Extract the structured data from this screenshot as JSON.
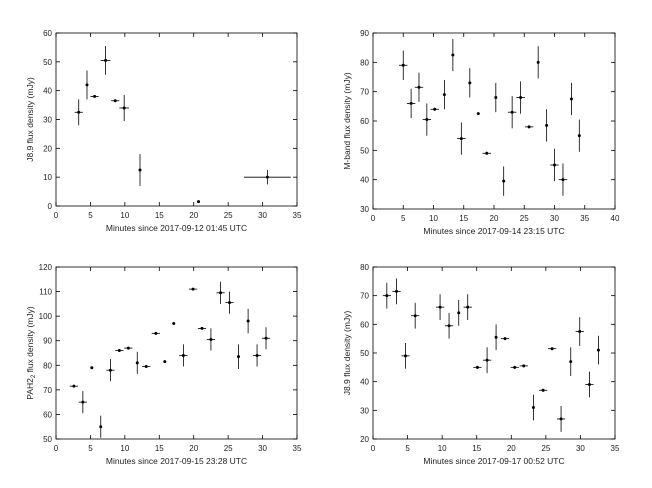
{
  "chart_data": [
    {
      "type": "scatter",
      "xlabel": "Minutes since 2017-09-12 01:45 UTC",
      "ylabel": "J8.9  flux density (mJy)",
      "xlim": [
        0,
        35
      ],
      "ylim": [
        0,
        60
      ],
      "xticks": [
        "0",
        "5",
        "10",
        "15",
        "20",
        "25",
        "30",
        "35"
      ],
      "yticks": [
        "0",
        "10",
        "20",
        "30",
        "40",
        "50",
        "60"
      ],
      "grid": false,
      "points": [
        {
          "x": 3.3,
          "y": 32.5,
          "xerr": 0.6,
          "yerr": 4.5
        },
        {
          "x": 4.5,
          "y": 42.0,
          "xerr": 0.0,
          "yerr": 5.0
        },
        {
          "x": 5.6,
          "y": 38.0,
          "xerr": 0.6,
          "yerr": 0.5
        },
        {
          "x": 7.2,
          "y": 50.5,
          "xerr": 0.7,
          "yerr": 5.0
        },
        {
          "x": 8.6,
          "y": 36.5,
          "xerr": 0.6,
          "yerr": 0.5
        },
        {
          "x": 9.9,
          "y": 34.0,
          "xerr": 0.7,
          "yerr": 4.5
        },
        {
          "x": 12.2,
          "y": 12.5,
          "xerr": 0.0,
          "yerr": 5.5
        },
        {
          "x": 20.7,
          "y": 1.5,
          "xerr": 0.0,
          "yerr": 0.0
        },
        {
          "x": 30.7,
          "y": 10.0,
          "xerr": 3.4,
          "yerr": 2.5
        }
      ]
    },
    {
      "type": "scatter",
      "xlabel": "Minutes since 2017-09-14 23:15 UTC",
      "ylabel": "M-band flux density (mJy)",
      "xlim": [
        0,
        40
      ],
      "ylim": [
        30,
        90
      ],
      "xticks": [
        "0",
        "5",
        "10",
        "15",
        "20",
        "25",
        "30",
        "35",
        "40"
      ],
      "yticks": [
        "30",
        "40",
        "50",
        "60",
        "70",
        "80",
        "90"
      ],
      "grid": false,
      "points": [
        {
          "x": 5.0,
          "y": 79.0,
          "xerr": 0.7,
          "yerr": 5.0
        },
        {
          "x": 6.3,
          "y": 66.0,
          "xerr": 0.7,
          "yerr": 5.0
        },
        {
          "x": 7.6,
          "y": 71.5,
          "xerr": 0.7,
          "yerr": 5.0
        },
        {
          "x": 8.9,
          "y": 60.5,
          "xerr": 0.7,
          "yerr": 5.5
        },
        {
          "x": 10.2,
          "y": 64.0,
          "xerr": 0.7,
          "yerr": 0.5
        },
        {
          "x": 11.8,
          "y": 69.0,
          "xerr": 0.0,
          "yerr": 5.0
        },
        {
          "x": 13.2,
          "y": 82.5,
          "xerr": 0.0,
          "yerr": 5.5
        },
        {
          "x": 14.6,
          "y": 54.0,
          "xerr": 0.7,
          "yerr": 5.5
        },
        {
          "x": 16.0,
          "y": 73.0,
          "xerr": 0.0,
          "yerr": 5.0
        },
        {
          "x": 17.4,
          "y": 62.5,
          "xerr": 0.0,
          "yerr": 0.0
        },
        {
          "x": 18.8,
          "y": 49.0,
          "xerr": 0.7,
          "yerr": 0.5
        },
        {
          "x": 20.3,
          "y": 68.0,
          "xerr": 0.0,
          "yerr": 5.0
        },
        {
          "x": 21.6,
          "y": 39.5,
          "xerr": 0.0,
          "yerr": 5.0
        },
        {
          "x": 23.0,
          "y": 63.0,
          "xerr": 0.7,
          "yerr": 5.5
        },
        {
          "x": 24.4,
          "y": 68.0,
          "xerr": 0.7,
          "yerr": 5.5
        },
        {
          "x": 25.8,
          "y": 58.0,
          "xerr": 0.7,
          "yerr": 0.5
        },
        {
          "x": 27.3,
          "y": 80.0,
          "xerr": 0.0,
          "yerr": 5.5
        },
        {
          "x": 28.7,
          "y": 58.5,
          "xerr": 0.0,
          "yerr": 5.5
        },
        {
          "x": 30.0,
          "y": 45.0,
          "xerr": 0.7,
          "yerr": 5.5
        },
        {
          "x": 31.4,
          "y": 40.0,
          "xerr": 0.7,
          "yerr": 5.5
        },
        {
          "x": 32.8,
          "y": 67.5,
          "xerr": 0.0,
          "yerr": 5.5
        },
        {
          "x": 34.1,
          "y": 55.0,
          "xerr": 0.0,
          "yerr": 5.5
        }
      ]
    },
    {
      "type": "scatter",
      "xlabel": "Minutes since 2017-09-15 23:28 UTC",
      "ylabel": "PAH2",
      "ylabel_sub": "2",
      "ylabel_after": " flux density (mJy)",
      "xlim": [
        0,
        35
      ],
      "ylim": [
        50,
        120
      ],
      "xticks": [
        "0",
        "5",
        "10",
        "15",
        "20",
        "25",
        "30",
        "35"
      ],
      "yticks": [
        "50",
        "60",
        "70",
        "80",
        "90",
        "100",
        "110",
        "120"
      ],
      "grid": false,
      "points": [
        {
          "x": 2.6,
          "y": 71.5,
          "xerr": 0.6,
          "yerr": 0.5
        },
        {
          "x": 3.9,
          "y": 65.0,
          "xerr": 0.6,
          "yerr": 4.5
        },
        {
          "x": 5.2,
          "y": 79.0,
          "xerr": 0.0,
          "yerr": 0.0
        },
        {
          "x": 6.5,
          "y": 55.0,
          "xerr": 0.0,
          "yerr": 4.5
        },
        {
          "x": 7.9,
          "y": 78.0,
          "xerr": 0.6,
          "yerr": 4.5
        },
        {
          "x": 9.2,
          "y": 86.0,
          "xerr": 0.6,
          "yerr": 0.5
        },
        {
          "x": 10.5,
          "y": 87.0,
          "xerr": 0.6,
          "yerr": 0.5
        },
        {
          "x": 11.8,
          "y": 81.0,
          "xerr": 0.0,
          "yerr": 4.5
        },
        {
          "x": 13.1,
          "y": 79.5,
          "xerr": 0.6,
          "yerr": 0.5
        },
        {
          "x": 14.5,
          "y": 93.0,
          "xerr": 0.6,
          "yerr": 0.5
        },
        {
          "x": 15.8,
          "y": 81.5,
          "xerr": 0.0,
          "yerr": 0.0
        },
        {
          "x": 17.1,
          "y": 97.0,
          "xerr": 0.0,
          "yerr": 0.0
        },
        {
          "x": 18.5,
          "y": 84.0,
          "xerr": 0.6,
          "yerr": 4.5
        },
        {
          "x": 19.9,
          "y": 111.0,
          "xerr": 0.6,
          "yerr": 0.5
        },
        {
          "x": 21.2,
          "y": 95.0,
          "xerr": 0.6,
          "yerr": 0.5
        },
        {
          "x": 22.5,
          "y": 90.5,
          "xerr": 0.6,
          "yerr": 4.5
        },
        {
          "x": 23.9,
          "y": 109.5,
          "xerr": 0.6,
          "yerr": 4.5
        },
        {
          "x": 25.2,
          "y": 105.5,
          "xerr": 0.6,
          "yerr": 4.5
        },
        {
          "x": 26.5,
          "y": 83.5,
          "xerr": 0.0,
          "yerr": 5.0
        },
        {
          "x": 27.9,
          "y": 98.0,
          "xerr": 0.0,
          "yerr": 5.0
        },
        {
          "x": 29.2,
          "y": 84.0,
          "xerr": 0.6,
          "yerr": 4.5
        },
        {
          "x": 30.5,
          "y": 91.0,
          "xerr": 0.6,
          "yerr": 4.5
        }
      ]
    },
    {
      "type": "scatter",
      "xlabel": "Minutes since 2017-09-17 00:52 UTC",
      "ylabel": "J8.9  flux density (mJy)",
      "xlim": [
        0,
        35
      ],
      "ylim": [
        20,
        80
      ],
      "xticks": [
        "0",
        "5",
        "10",
        "15",
        "20",
        "25",
        "30",
        "35"
      ],
      "yticks": [
        "20",
        "30",
        "40",
        "50",
        "60",
        "70",
        "80"
      ],
      "grid": false,
      "points": [
        {
          "x": 2.0,
          "y": 70.0,
          "xerr": 0.6,
          "yerr": 4.5
        },
        {
          "x": 3.4,
          "y": 71.5,
          "xerr": 0.6,
          "yerr": 4.5
        },
        {
          "x": 4.7,
          "y": 49.0,
          "xerr": 0.6,
          "yerr": 4.5
        },
        {
          "x": 6.1,
          "y": 63.0,
          "xerr": 0.6,
          "yerr": 4.5
        },
        {
          "x": 9.7,
          "y": 66.0,
          "xerr": 0.6,
          "yerr": 4.5
        },
        {
          "x": 11.0,
          "y": 59.5,
          "xerr": 0.6,
          "yerr": 4.5
        },
        {
          "x": 12.4,
          "y": 64.0,
          "xerr": 0.0,
          "yerr": 4.5
        },
        {
          "x": 13.7,
          "y": 66.0,
          "xerr": 0.6,
          "yerr": 4.5
        },
        {
          "x": 15.1,
          "y": 45.0,
          "xerr": 0.6,
          "yerr": 0.5
        },
        {
          "x": 16.5,
          "y": 47.5,
          "xerr": 0.6,
          "yerr": 4.5
        },
        {
          "x": 17.8,
          "y": 55.5,
          "xerr": 0.0,
          "yerr": 4.5
        },
        {
          "x": 19.1,
          "y": 55.0,
          "xerr": 0.6,
          "yerr": 0.5
        },
        {
          "x": 20.5,
          "y": 45.0,
          "xerr": 0.6,
          "yerr": 0.5
        },
        {
          "x": 21.8,
          "y": 45.5,
          "xerr": 0.6,
          "yerr": 0.5
        },
        {
          "x": 23.2,
          "y": 31.0,
          "xerr": 0.0,
          "yerr": 4.5
        },
        {
          "x": 24.6,
          "y": 37.0,
          "xerr": 0.6,
          "yerr": 0.5
        },
        {
          "x": 25.9,
          "y": 51.5,
          "xerr": 0.6,
          "yerr": 0.5
        },
        {
          "x": 27.2,
          "y": 27.0,
          "xerr": 0.6,
          "yerr": 4.5
        },
        {
          "x": 28.6,
          "y": 47.0,
          "xerr": 0.0,
          "yerr": 5.0
        },
        {
          "x": 29.9,
          "y": 57.5,
          "xerr": 0.6,
          "yerr": 5.0
        },
        {
          "x": 31.3,
          "y": 39.0,
          "xerr": 0.6,
          "yerr": 4.5
        },
        {
          "x": 32.6,
          "y": 51.0,
          "xerr": 0.0,
          "yerr": 5.0
        }
      ]
    }
  ]
}
